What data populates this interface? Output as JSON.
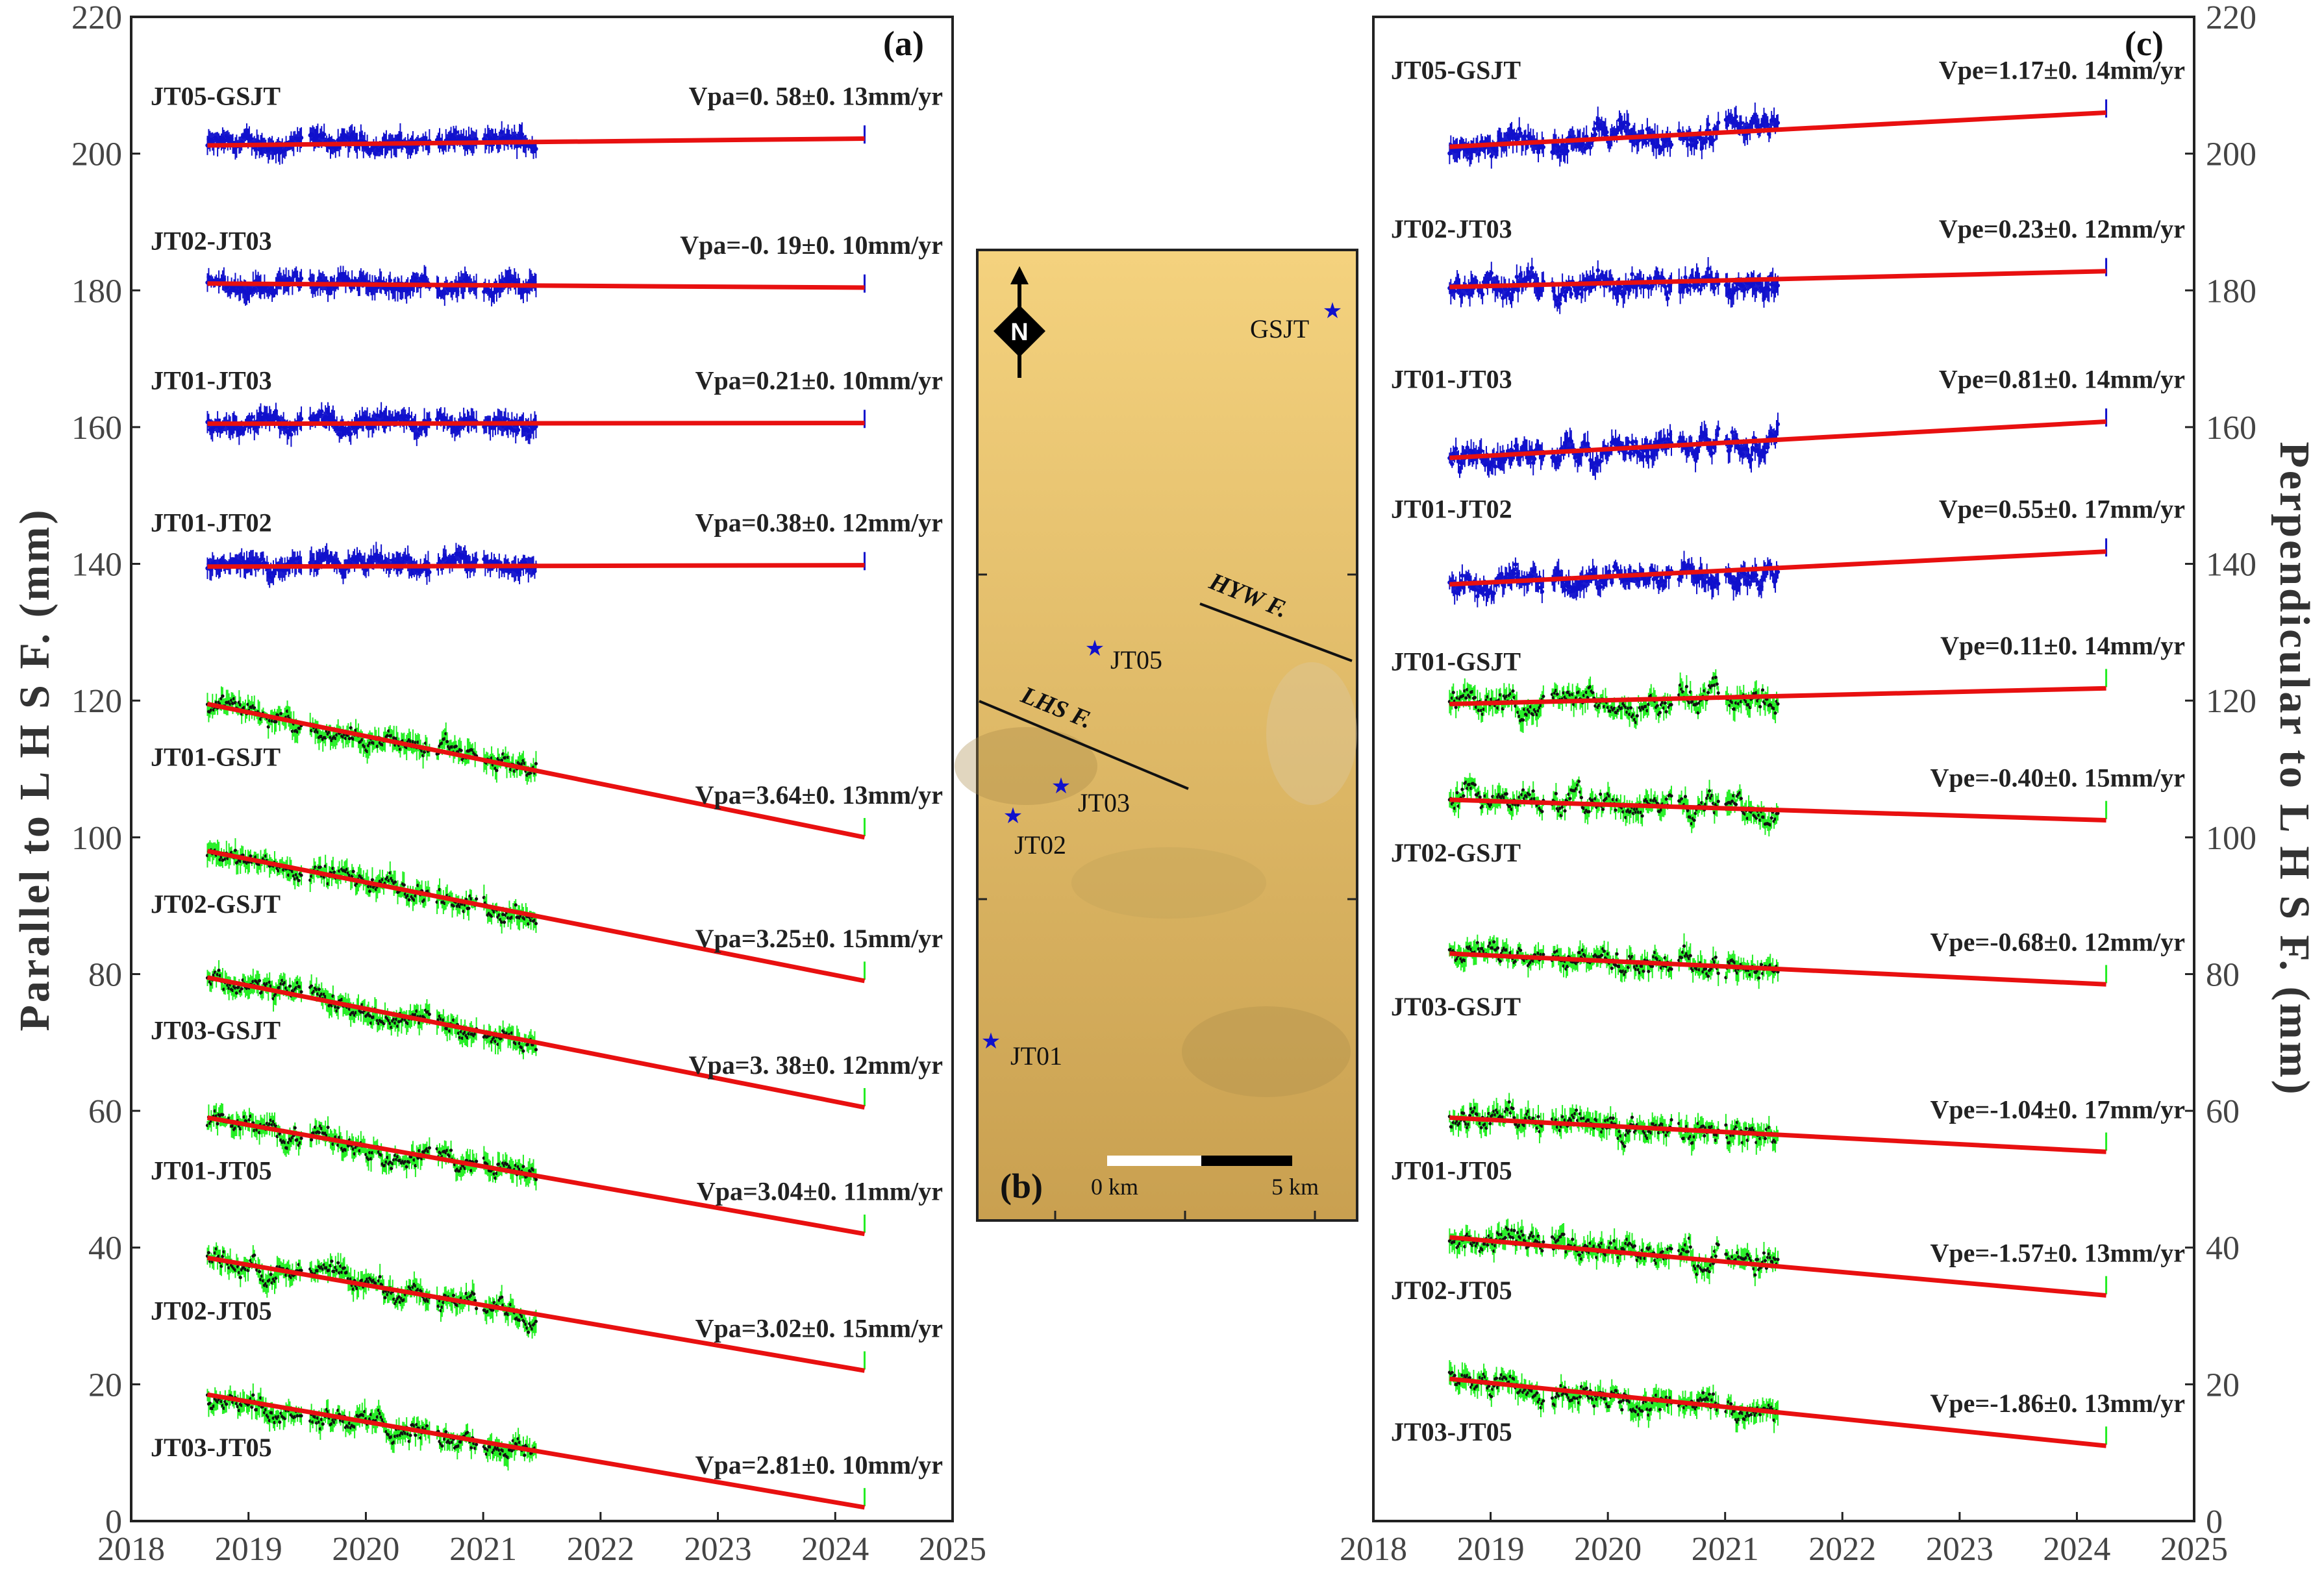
{
  "chart_data": [
    {
      "panel": "(a)",
      "type": "line",
      "ylabel": "Parallel to L H S F. (mm)",
      "xlim": [
        2018,
        2025
      ],
      "ylim": [
        0,
        220
      ],
      "xticks": [
        2018,
        2019,
        2020,
        2021,
        2022,
        2023,
        2024,
        2025
      ],
      "yticks": [
        0,
        20,
        40,
        60,
        80,
        100,
        120,
        140,
        160,
        180,
        200,
        220
      ],
      "data_span": [
        2018.65,
        2021.45
      ],
      "series": [
        {
          "name": "JT05-GSJT",
          "rate": "Vpa=0. 58±0. 13mm/yr",
          "color": "blue",
          "start": 201.2,
          "end": 202.2,
          "noise": 1.2
        },
        {
          "name": "JT02-JT03",
          "rate": "Vpa=-0. 19±0. 10mm/yr",
          "color": "blue",
          "start": 181.0,
          "end": 180.4,
          "noise": 1.2
        },
        {
          "name": "JT01-JT03",
          "rate": "Vpa=0.21±0. 10mm/yr",
          "color": "blue",
          "start": 160.5,
          "end": 160.6,
          "noise": 1.2
        },
        {
          "name": "JT01-JT02",
          "rate": "Vpa=0.38±0. 12mm/yr",
          "color": "blue",
          "start": 139.6,
          "end": 139.8,
          "noise": 1.2
        },
        {
          "name": "JT01-GSJT",
          "rate": "Vpa=3.64±0. 13mm/yr",
          "color": "green",
          "start": 119.5,
          "end": 100.0,
          "noise": 1.5
        },
        {
          "name": "JT02-GSJT",
          "rate": "Vpa=3.25±0. 15mm/yr",
          "color": "green",
          "start": 98.0,
          "end": 79.0,
          "noise": 1.5
        },
        {
          "name": "JT03-GSJT",
          "rate": "Vpa=3. 38±0. 12mm/yr",
          "color": "green",
          "start": 79.5,
          "end": 60.5,
          "noise": 1.5
        },
        {
          "name": "JT01-JT05",
          "rate": "Vpa=3.04±0. 11mm/yr",
          "color": "green",
          "start": 59.0,
          "end": 42.0,
          "noise": 1.5
        },
        {
          "name": "JT02-JT05",
          "rate": "Vpa=3.02±0. 15mm/yr",
          "color": "green",
          "start": 38.5,
          "end": 22.0,
          "noise": 1.5
        },
        {
          "name": "JT03-JT05",
          "rate": "Vpa=2.81±0. 10mm/yr",
          "color": "green",
          "start": 18.5,
          "end": 2.0,
          "noise": 1.5
        }
      ]
    },
    {
      "panel": "(c)",
      "type": "line",
      "ylabel": "Perpendicular to L H S F. (mm)",
      "xlim": [
        2018,
        2025
      ],
      "ylim": [
        0,
        220
      ],
      "xticks": [
        2018,
        2019,
        2020,
        2021,
        2022,
        2023,
        2024,
        2025
      ],
      "yticks": [
        0,
        20,
        40,
        60,
        80,
        100,
        120,
        140,
        160,
        180,
        200,
        220
      ],
      "data_span": [
        2018.65,
        2021.45
      ],
      "series": [
        {
          "name": "JT05-GSJT",
          "rate": "Vpe=1.17±0. 14mm/yr",
          "color": "blue",
          "start": 201.0,
          "end": 206.0,
          "noise": 1.8
        },
        {
          "name": "JT02-JT03",
          "rate": "Vpe=0.23±0. 12mm/yr",
          "color": "blue",
          "start": 180.5,
          "end": 182.8,
          "noise": 1.8
        },
        {
          "name": "JT01-JT03",
          "rate": "Vpe=0.81±0. 14mm/yr",
          "color": "blue",
          "start": 155.5,
          "end": 160.8,
          "noise": 1.8
        },
        {
          "name": "JT01-JT02",
          "rate": "Vpe=0.55±0. 17mm/yr",
          "color": "blue",
          "start": 137.0,
          "end": 141.8,
          "noise": 1.8
        },
        {
          "name": "JT01-GSJT",
          "rate": "Vpe=0.11±0. 14mm/yr",
          "color": "green",
          "start": 119.5,
          "end": 121.8,
          "noise": 1.8
        },
        {
          "name": "JT02-GSJT",
          "rate": "Vpe=-0.40±0. 15mm/yr",
          "color": "green",
          "start": 105.5,
          "end": 102.5,
          "noise": 1.8
        },
        {
          "name": "JT03-GSJT",
          "rate": "Vpe=-0.68±0. 12mm/yr",
          "color": "green",
          "start": 83.0,
          "end": 78.5,
          "noise": 1.5
        },
        {
          "name": "JT01-JT05",
          "rate": "Vpe=-1.04±0. 17mm/yr",
          "color": "green",
          "start": 59.0,
          "end": 54.0,
          "noise": 1.8
        },
        {
          "name": "JT02-JT05",
          "rate": "Vpe=-1.57±0. 13mm/yr",
          "color": "green",
          "start": 41.5,
          "end": 33.0,
          "noise": 1.8
        },
        {
          "name": "JT03-JT05",
          "rate": "Vpe=-1.86±0. 13mm/yr",
          "color": "green",
          "start": 20.8,
          "end": 11.0,
          "noise": 1.6
        }
      ]
    }
  ],
  "map": {
    "panel": "(b)",
    "north": "N",
    "stations": [
      "JT05",
      "GSJT",
      "JT03",
      "JT02",
      "JT01"
    ],
    "faults": [
      "HYW F.",
      "LHS F."
    ],
    "scale": {
      "start": "0 km",
      "end": "5 km"
    }
  },
  "colors": {
    "blue": "#1010cc",
    "green": "#22ee22",
    "fit": "#e81010",
    "mapTop": "#f4d27e",
    "mapBottom": "#c9a050"
  }
}
